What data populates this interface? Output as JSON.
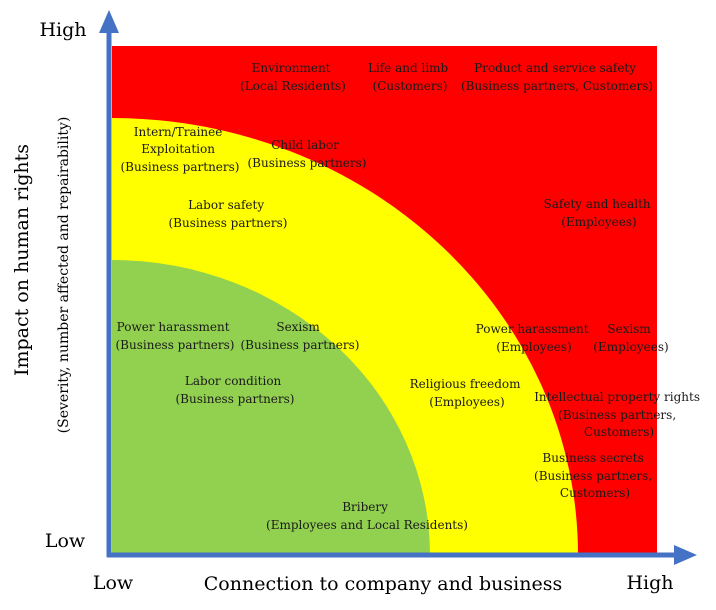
{
  "axes": {
    "y_high": "High",
    "y_low": "Low",
    "x_low": "Low",
    "x_high": "High",
    "x_title": "Connection to company and business",
    "y_title": "Impact on human rights",
    "y_subtitle": "(Severity, number affected and repairability)"
  },
  "zones": {
    "high_color": "#ff0000",
    "medium_color": "#ffff00",
    "low_color": "#92d050",
    "axis_color": "#4472c4"
  },
  "items": {
    "environment": [
      "Environment",
      "(Local Residents)"
    ],
    "life_and_limb": [
      "Life and limb",
      "(Customers)"
    ],
    "product_safety": [
      "Product and service safety",
      "(Business partners, Customers)"
    ],
    "intern": [
      "Intern/Trainee",
      "Exploitation",
      "(Business partners)"
    ],
    "child_labor": [
      "Child labor",
      "(Business partners)"
    ],
    "labor_safety": [
      "Labor safety",
      "(Business partners)"
    ],
    "safety_health": [
      "Safety and health",
      "(Employees)"
    ],
    "power_harassment_bp": [
      "Power harassment",
      "(Business partners)"
    ],
    "sexism_bp": [
      "Sexism",
      "(Business partners)"
    ],
    "power_harassment_emp": [
      "Power harassment",
      "(Employees)"
    ],
    "sexism_emp": [
      "Sexism",
      "(Employees)"
    ],
    "labor_condition": [
      "Labor condition",
      "(Business partners)"
    ],
    "religious_freedom": [
      "Religious freedom",
      "(Employees)"
    ],
    "ip_rights": [
      "Intellectual property rights",
      "(Business partners,",
      "Customers)"
    ],
    "business_secrets": [
      "Business secrets",
      "(Business partners,",
      "Customers)"
    ],
    "bribery": [
      "Bribery",
      "(Employees and Local Residents)"
    ]
  }
}
